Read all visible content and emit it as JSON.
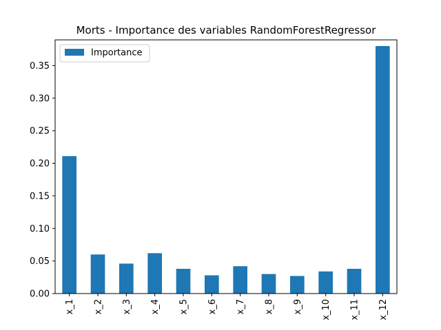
{
  "chart_data": {
    "type": "bar",
    "title": "Morts - Importance des variables RandomForestRegressor",
    "categories": [
      "x_1",
      "x_2",
      "x_3",
      "x_4",
      "x_5",
      "x_6",
      "x_7",
      "x_8",
      "x_9",
      "x_10",
      "x_11",
      "x_12"
    ],
    "series": [
      {
        "name": "Importance",
        "color": "#1f77b4",
        "values": [
          0.211,
          0.06,
          0.046,
          0.062,
          0.038,
          0.028,
          0.042,
          0.03,
          0.027,
          0.034,
          0.038,
          0.38
        ]
      }
    ],
    "yticks": [
      "0.00",
      "0.05",
      "0.10",
      "0.15",
      "0.20",
      "0.25",
      "0.30",
      "0.35"
    ],
    "ylim": [
      0,
      0.3895
    ],
    "xlabel": "",
    "ylabel": "",
    "grid": false,
    "legend_position": "top-left"
  }
}
